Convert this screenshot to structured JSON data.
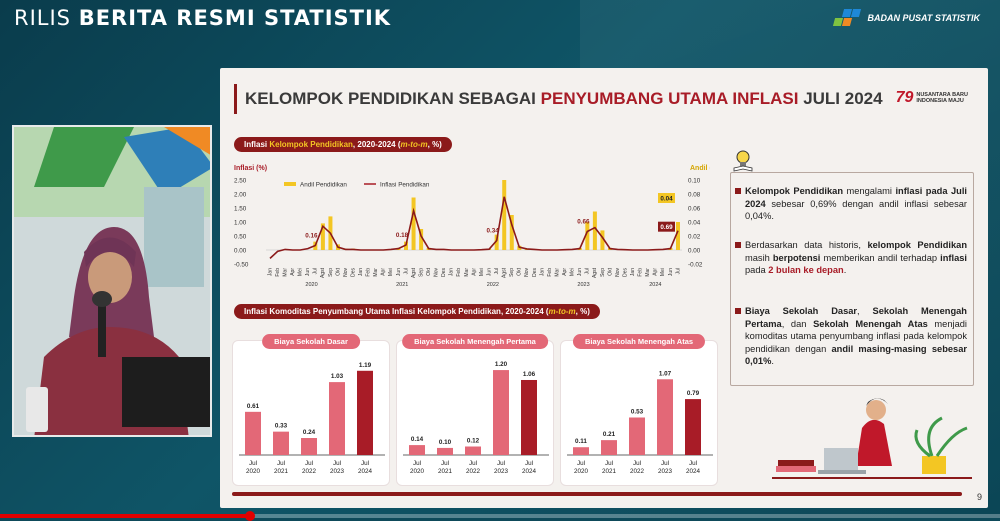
{
  "header": {
    "title_prefix": "RILIS",
    "title_bold": "BERITA RESMI STATISTIK",
    "agency": "BADAN PUSAT STATISTIK"
  },
  "slide": {
    "title_a": "KELOMPOK PENDIDIKAN SEBAGAI ",
    "title_hl": "PENYUMBANG UTAMA INFLASI",
    "title_b": " JULI 2024",
    "logo_line1": "NUSANTARA BARU",
    "logo_line2": "INDONESIA MAJU",
    "logo_num": "79",
    "page": "9",
    "pill1_a": "Inflasi ",
    "pill1_hl": "Kelompok Pendidikan",
    "pill1_b": ", 2020-2024 (",
    "pill1_it": "m-to-m",
    "pill1_c": ", %)",
    "pill2_a": "Inflasi Komoditas Penyumbang Utama Inflasi Kelompok Pendidikan, 2020-2024 (",
    "pill2_hl": "m-to-m",
    "pill2_b": ", %)"
  },
  "notes": [
    {
      "parts": [
        [
          "b",
          "Kelompok Pendidikan"
        ],
        [
          "n",
          " mengalami "
        ],
        [
          "b",
          "inflasi pada Juli 2024"
        ],
        [
          "n",
          " sebesar 0,69% dengan andil inflasi sebesar 0,04%."
        ]
      ]
    },
    {
      "parts": [
        [
          "n",
          "Berdasarkan data historis, "
        ],
        [
          "b",
          "kelompok Pendidikan"
        ],
        [
          "n",
          " masih "
        ],
        [
          "b",
          "berpotensi"
        ],
        [
          "n",
          " memberikan andil terhadap "
        ],
        [
          "b",
          "inflasi"
        ],
        [
          "n",
          " pada "
        ],
        [
          "r",
          "2 bulan ke depan"
        ],
        [
          "n",
          "."
        ]
      ]
    },
    {
      "parts": [
        [
          "b",
          "Biaya Sekolah Dasar"
        ],
        [
          "n",
          ", "
        ],
        [
          "b",
          "Sekolah Menengah Pertama"
        ],
        [
          "n",
          ", dan "
        ],
        [
          "b",
          "Sekolah Menengah Atas"
        ],
        [
          "n",
          " menjadi komoditas utama penyumbang inflasi pada kelompok pendidikan dengan "
        ],
        [
          "b",
          "andil masing-masing sebesar 0,01%"
        ],
        [
          "n",
          "."
        ]
      ]
    }
  ],
  "colors": {
    "accent": "#8b1a1a",
    "bar_light": "#e36877",
    "bar_dark": "#a81c27",
    "andil": "#f3c623"
  },
  "chart_data": [
    {
      "type": "line",
      "title": "Inflasi Kelompok Pendidikan, 2020-2024 (m-to-m, %)",
      "ylabel": "Inflasi (%)",
      "y2label": "Andil (%)",
      "ylim": [
        -0.5,
        2.5
      ],
      "y2lim": [
        -0.02,
        0.1
      ],
      "yticks": [
        "2.50",
        "2.00",
        "1.50",
        "1.00",
        "0.50",
        "0.00",
        "-0.50"
      ],
      "y2ticks": [
        "0.10",
        "0.08",
        "0.06",
        "0.04",
        "0.02",
        "0.00",
        "-0.02"
      ],
      "legend": [
        "Andil Pendidikan",
        "Inflasi Pendidikan"
      ],
      "months": [
        "Jan",
        "Feb",
        "Mar",
        "Apr",
        "Mei",
        "Jun",
        "Jul",
        "Agst",
        "Sep",
        "Okt",
        "Nov",
        "Des"
      ],
      "years": [
        "2020",
        "2021",
        "2022",
        "2023",
        "2024"
      ],
      "labels": [
        {
          "i": 6,
          "text": "0.16"
        },
        {
          "i": 18,
          "text": "0.18"
        },
        {
          "i": 30,
          "text": "0.34"
        },
        {
          "i": 42,
          "text": "0.66"
        },
        {
          "i": 54,
          "text": "0.04"
        },
        {
          "i": 54,
          "text": "0.69"
        }
      ],
      "inflasi": [
        -0.3,
        -0.05,
        0.02,
        0.0,
        0.0,
        0.05,
        0.16,
        0.85,
        0.6,
        0.1,
        0.02,
        0.02,
        0.0,
        0.0,
        0.0,
        0.0,
        0.02,
        0.05,
        0.18,
        1.4,
        0.5,
        0.05,
        0.02,
        0.02,
        0.0,
        0.0,
        0.0,
        0.0,
        0.01,
        0.03,
        0.34,
        1.9,
        0.9,
        0.1,
        0.04,
        0.02,
        0.0,
        0.0,
        0.0,
        0.01,
        0.02,
        0.05,
        0.66,
        0.8,
        0.45,
        0.05,
        0.02,
        0.01,
        0.0,
        0.0,
        0.0,
        0.01,
        0.02,
        0.05,
        0.69
      ],
      "andil": [
        0.0,
        0.0,
        0.0,
        0.0,
        0.0,
        0.0,
        0.012,
        0.038,
        0.048,
        0.008,
        0.002,
        0.002,
        0.0,
        0.0,
        0.0,
        0.0,
        0.001,
        0.003,
        0.012,
        0.075,
        0.03,
        0.003,
        0.001,
        0.001,
        0.0,
        0.0,
        0.0,
        0.0,
        0.001,
        0.002,
        0.022,
        0.1,
        0.05,
        0.006,
        0.002,
        0.001,
        0.0,
        0.0,
        0.0,
        0.001,
        0.001,
        0.003,
        0.04,
        0.055,
        0.028,
        0.003,
        0.001,
        0.001,
        0.0,
        0.0,
        0.0,
        0.001,
        0.001,
        0.003,
        0.04
      ]
    },
    {
      "type": "bar",
      "title": "Biaya Sekolah Dasar",
      "categories": [
        "Jul 2020",
        "Jul 2021",
        "Jul 2022",
        "Jul 2023",
        "Jul 2024"
      ],
      "values": [
        0.61,
        0.33,
        0.24,
        1.03,
        1.19
      ]
    },
    {
      "type": "bar",
      "title": "Biaya Sekolah Menengah Pertama",
      "categories": [
        "Jul 2020",
        "Jul 2021",
        "Jul 2022",
        "Jul 2023",
        "Jul 2024"
      ],
      "values": [
        0.14,
        0.1,
        0.12,
        1.2,
        1.06
      ]
    },
    {
      "type": "bar",
      "title": "Biaya Sekolah Menengah Atas",
      "categories": [
        "Jul 2020",
        "Jul 2021",
        "Jul 2022",
        "Jul 2023",
        "Jul 2024"
      ],
      "values": [
        0.11,
        0.21,
        0.53,
        1.07,
        0.79
      ]
    }
  ],
  "video": {
    "progress": 0.25
  }
}
